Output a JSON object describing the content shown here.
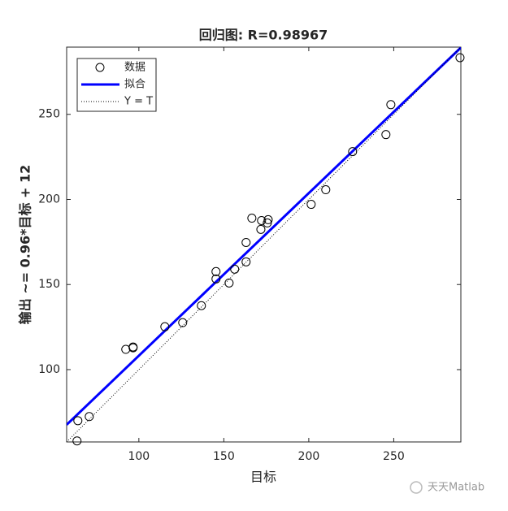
{
  "chart_data": {
    "type": "scatter",
    "title": "回归图: R=0.98967",
    "x_label": "目标",
    "y_label": "输出 ~= 0.96*目标 + 12",
    "xlim": [
      57.5,
      289.5
    ],
    "ylim": [
      57.5,
      289.5
    ],
    "xticks": [
      100,
      150,
      200,
      250
    ],
    "yticks": [
      100,
      150,
      200,
      250
    ],
    "grid": false,
    "legend": "top-left",
    "series": [
      {
        "name": "数据",
        "color": "#000000",
        "style": "markers",
        "x": [
          63.6,
          64.1,
          70.8,
          92.3,
          96.6,
          96.6,
          115.3,
          125.8,
          136.8,
          145.4,
          145.4,
          153.1,
          156.4,
          163.1,
          163.1,
          166.5,
          171.8,
          172.2,
          175.6,
          176.1,
          201.4,
          210.0,
          225.8,
          245.4,
          248.3,
          289.0
        ],
        "values": [
          58.1,
          70.0,
          72.4,
          111.9,
          112.8,
          113.3,
          125.2,
          127.6,
          137.6,
          157.6,
          153.3,
          150.9,
          159.0,
          163.3,
          174.7,
          189.0,
          182.4,
          187.6,
          186.2,
          188.1,
          197.1,
          205.7,
          228.1,
          238.1,
          255.7,
          283.3
        ]
      },
      {
        "name": "拟合",
        "color": "#0000ff",
        "style": "solid",
        "x": [
          57.5,
          289.5
        ],
        "values": [
          67.6,
          289.2
        ]
      },
      {
        "name": "Y = T",
        "color": "#000000",
        "style": "dotted",
        "x": [
          57.5,
          289.5
        ],
        "values": [
          57.5,
          289.5
        ]
      }
    ]
  },
  "watermark": "天天Matlab"
}
